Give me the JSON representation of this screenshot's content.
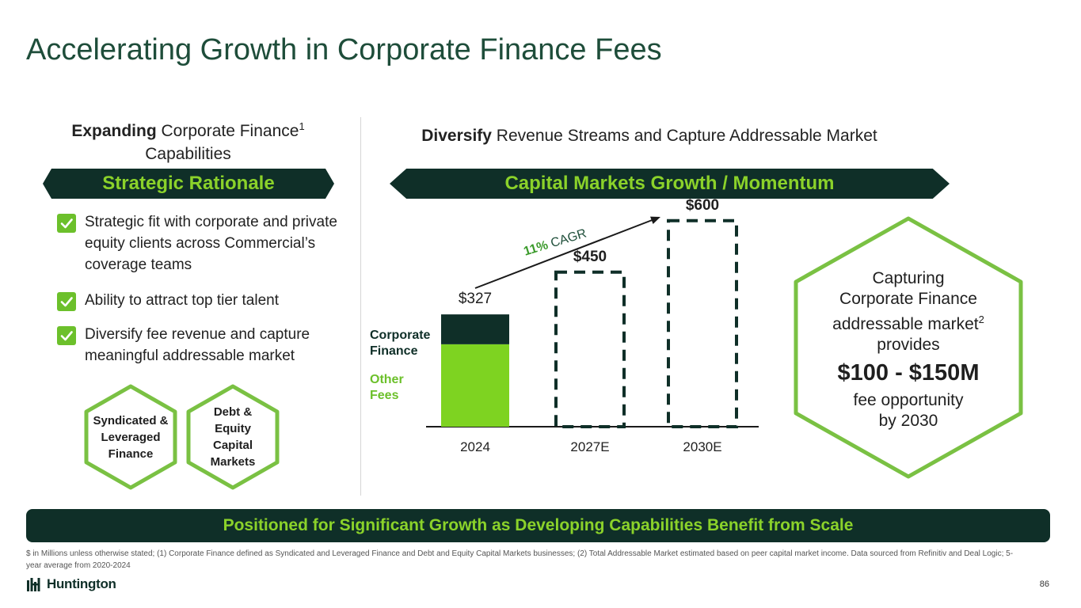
{
  "title": "Accelerating Growth in Corporate Finance Fees",
  "left": {
    "subhead_bold": "Expanding",
    "subhead_rest": " Corporate Finance",
    "subhead_sup": "1",
    "subhead_line2": "Capabilities",
    "banner": "Strategic Rationale",
    "bullets": [
      "Strategic fit with corporate and private equity clients across Commercial’s coverage teams",
      "Ability to attract top tier talent",
      "Diversify fee revenue and capture meaningful addressable market"
    ],
    "hexes": [
      "Syndicated & Leveraged Finance",
      "Debt & Equity Capital Markets"
    ]
  },
  "right": {
    "subhead_bold": "Diversify",
    "subhead_rest": " Revenue Streams and Capture Addressable Market",
    "banner": "Capital Markets Growth / Momentum"
  },
  "chart_data": {
    "type": "bar",
    "categories": [
      "2024",
      "2027E",
      "2030E"
    ],
    "values": [
      327,
      450,
      600
    ],
    "value_labels": [
      "$327",
      "$450",
      "$600"
    ],
    "stack_2024": [
      {
        "name": "Corporate Finance",
        "color": "#0f2f28",
        "value": 87
      },
      {
        "name": "Other Fees",
        "color": "#7ed321",
        "value": 240
      }
    ],
    "projected_style": "dashed-outline",
    "cagr_bold": "11%",
    "cagr_text": " CAGR",
    "ylim": [
      0,
      650
    ]
  },
  "callout": {
    "line1": "Capturing",
    "line2": "Corporate Finance",
    "line3": "addressable market",
    "line3_sup": "2",
    "line4": "provides",
    "value": "$100 - $150M",
    "line5": "fee opportunity",
    "line6": "by 2030"
  },
  "footer_banner": "Positioned for Significant Growth as Developing Capabilities Benefit from Scale",
  "footnote": "$ in Millions unless otherwise stated; (1) Corporate Finance defined as Syndicated and Leveraged Finance and Debt and Equity Capital Markets businesses; (2) Total Addressable Market estimated based on peer capital market income. Data sourced from Refinitiv and Deal Logic; 5-year average from 2020-2024",
  "logo_text": "Huntington",
  "page_number": "86",
  "colors": {
    "dark_green": "#0f2f28",
    "accent_green": "#7ed321",
    "title_green": "#1e4d3a"
  }
}
